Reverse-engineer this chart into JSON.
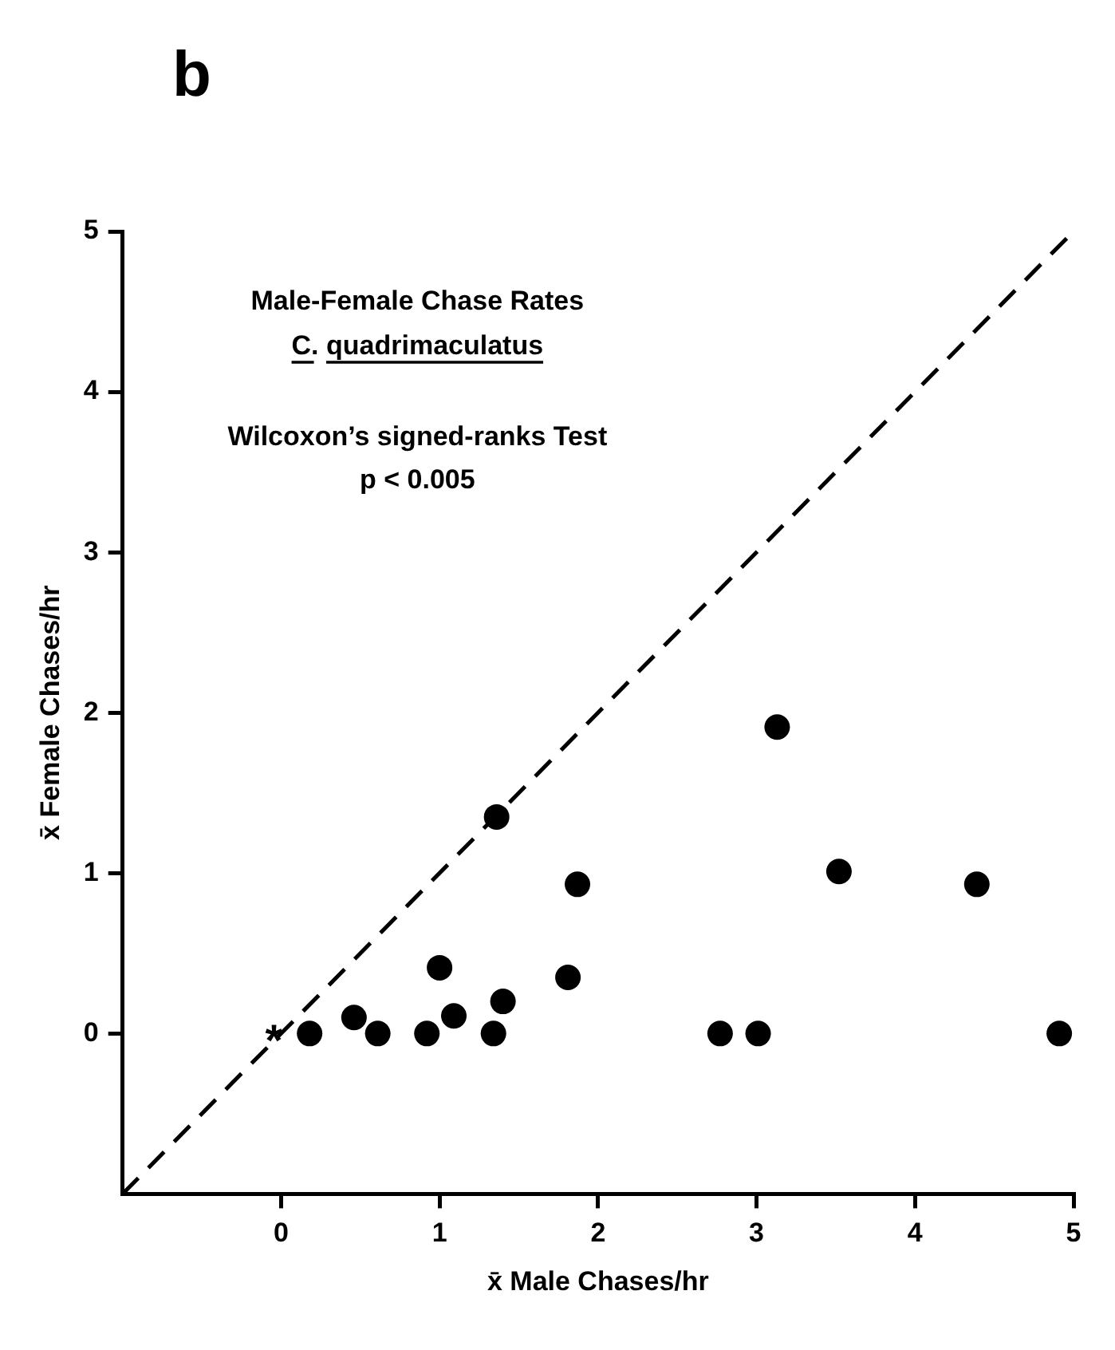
{
  "chart_data": {
    "type": "scatter",
    "xlabel": "x̄ Male Chases/hr",
    "ylabel": "x̄ Female Chases/hr",
    "xlim": [
      -1,
      5
    ],
    "ylim": [
      -1,
      5
    ],
    "xticks": [
      0,
      1,
      2,
      3,
      4,
      5
    ],
    "yticks": [
      0,
      1,
      2,
      3,
      4,
      5
    ],
    "grid": false,
    "legend": false,
    "series": [
      {
        "type": "scatter",
        "marker": "circle",
        "color": "#000000",
        "x": [
          0.18,
          0.46,
          0.61,
          0.92,
          1.0,
          1.09,
          1.34,
          1.36,
          1.4,
          1.81,
          1.87,
          2.77,
          3.01,
          3.13,
          3.52,
          4.39,
          4.91
        ],
        "values": [
          0,
          0.1,
          0,
          0,
          0.41,
          0.11,
          0,
          1.35,
          0.2,
          0.35,
          0.93,
          0,
          0,
          1.91,
          1.01,
          0.93,
          0
        ]
      },
      {
        "type": "line",
        "color": "#000000",
        "line_style": "dashed",
        "marker": "none",
        "x": [
          -1,
          5
        ],
        "values": [
          -1,
          5
        ]
      }
    ],
    "annotations": [
      "b",
      "Male-Female Chase Rates",
      "C. quadrimaculatus",
      "Wilcoxon’s signed-ranks Test",
      "p < 0.005",
      {
        "text": "*",
        "x": 0,
        "y": 0
      }
    ]
  }
}
